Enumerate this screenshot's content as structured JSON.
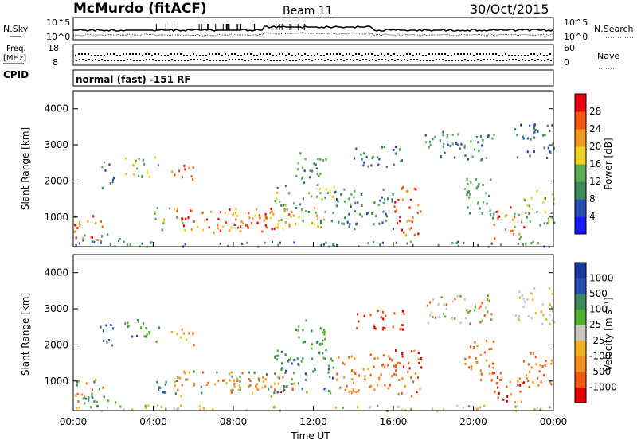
{
  "header": {
    "station": "McMurdo (fitACF)",
    "beam": "Beam 11",
    "date": "30/Oct/2015"
  },
  "top_panels": {
    "nsky_label": "N.Sky",
    "nsearch_label": "N.Search",
    "noise_ticks_left": [
      "10^5",
      "10^0"
    ],
    "noise_ticks_right": [
      "10^5",
      "10^0"
    ],
    "freq_label": "Freq.",
    "freq_unit": "[MHz]",
    "freq_ticks": [
      "18",
      "8"
    ],
    "nave_label": "Nave",
    "nave_ticks": [
      "60",
      "0"
    ],
    "cpid_label": "CPID",
    "cpid_text": "normal (fast) -151 RF"
  },
  "colors": {
    "power_scale": [
      "#1a1aff",
      "#2a4fb0",
      "#3c8a5c",
      "#5faa55",
      "#f0d020",
      "#f09a20",
      "#f05a10",
      "#e80010"
    ],
    "velocity_scale": [
      "#e00000",
      "#f05a10",
      "#f09020",
      "#f0b020",
      "#c8c8c0",
      "#50b030",
      "#3c8a5c",
      "#2a4fb0",
      "#1a3aa0"
    ]
  },
  "chart_data": [
    {
      "type": "heatmap",
      "name": "power",
      "ylabel": "Slant Range [km]",
      "yticks": [
        "1000",
        "2000",
        "3000",
        "4000"
      ],
      "ylim": [
        180,
        4500
      ],
      "colorbar_label": "Power [dB]",
      "colorbar_ticks": [
        "4",
        "8",
        "12",
        "16",
        "20",
        "24",
        "28"
      ],
      "clim": [
        0,
        32
      ]
    },
    {
      "type": "heatmap",
      "name": "velocity",
      "ylabel": "Slant Range [km]",
      "yticks": [
        "1000",
        "2000",
        "3000",
        "4000"
      ],
      "ylim": [
        180,
        4500
      ],
      "colorbar_label": "Velocity [m s⁻¹]",
      "colorbar_ticks": [
        "1000",
        "500",
        "100",
        "25",
        "-25",
        "-100",
        "-500",
        "-1000"
      ],
      "xlabel": "Time UT",
      "xticks": [
        "00:00",
        "04:00",
        "08:00",
        "12:00",
        "16:00",
        "20:00",
        "00:00"
      ]
    }
  ]
}
